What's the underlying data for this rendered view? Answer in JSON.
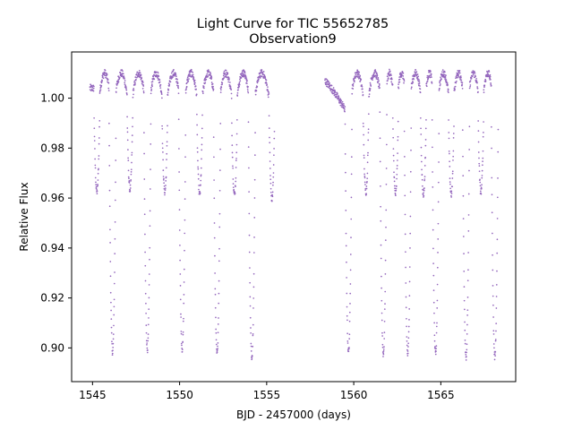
{
  "chart_data": {
    "type": "scatter",
    "title": "Light Curve for TIC 55652785",
    "subtitle": "Observation9",
    "xlabel": "BJD - 2457000 (days)",
    "ylabel": "Relative Flux",
    "xlim": [
      1543.8,
      1569.3
    ],
    "ylim": [
      0.8865,
      1.0185
    ],
    "xticks": [
      1545,
      1550,
      1555,
      1560,
      1565
    ],
    "yticks": [
      0.9,
      0.92,
      0.94,
      0.96,
      0.98,
      1.0
    ],
    "xtick_labels": [
      "1545",
      "1550",
      "1555",
      "1560",
      "1565"
    ],
    "ytick_labels": [
      "0.90",
      "0.92",
      "0.94",
      "0.96",
      "0.98",
      "1.00"
    ],
    "grid": false,
    "marker_color": "#9467bd",
    "series": [
      {
        "segments": [
          [
            1544.85,
            1555.45
          ],
          [
            1558.35,
            1568.3
          ]
        ],
        "out_of_eclipse_flux": [
          0.993,
          1.01
        ],
        "primary_eclipses": [
          {
            "t": 1546.15,
            "depth": 0.897
          },
          {
            "t": 1548.15,
            "depth": 0.898
          },
          {
            "t": 1550.15,
            "depth": 0.898
          },
          {
            "t": 1552.15,
            "depth": 0.896
          },
          {
            "t": 1554.15,
            "depth": 0.895
          },
          {
            "t": 1559.7,
            "depth": 0.897
          },
          {
            "t": 1561.7,
            "depth": 0.896
          },
          {
            "t": 1563.1,
            "depth": 0.896
          },
          {
            "t": 1564.7,
            "depth": 0.896
          },
          {
            "t": 1566.45,
            "depth": 0.895
          },
          {
            "t": 1568.1,
            "depth": 0.895
          }
        ],
        "secondary_eclipses": [
          {
            "t": 1545.25,
            "depth": 0.961
          },
          {
            "t": 1547.15,
            "depth": 0.962
          },
          {
            "t": 1549.15,
            "depth": 0.961
          },
          {
            "t": 1551.15,
            "depth": 0.96
          },
          {
            "t": 1553.15,
            "depth": 0.96
          },
          {
            "t": 1555.3,
            "depth": 0.958
          },
          {
            "t": 1560.7,
            "depth": 0.961
          },
          {
            "t": 1562.4,
            "depth": 0.96
          },
          {
            "t": 1564.0,
            "depth": 0.96
          },
          {
            "t": 1565.6,
            "depth": 0.96
          },
          {
            "t": 1567.3,
            "depth": 0.961
          }
        ]
      }
    ]
  }
}
